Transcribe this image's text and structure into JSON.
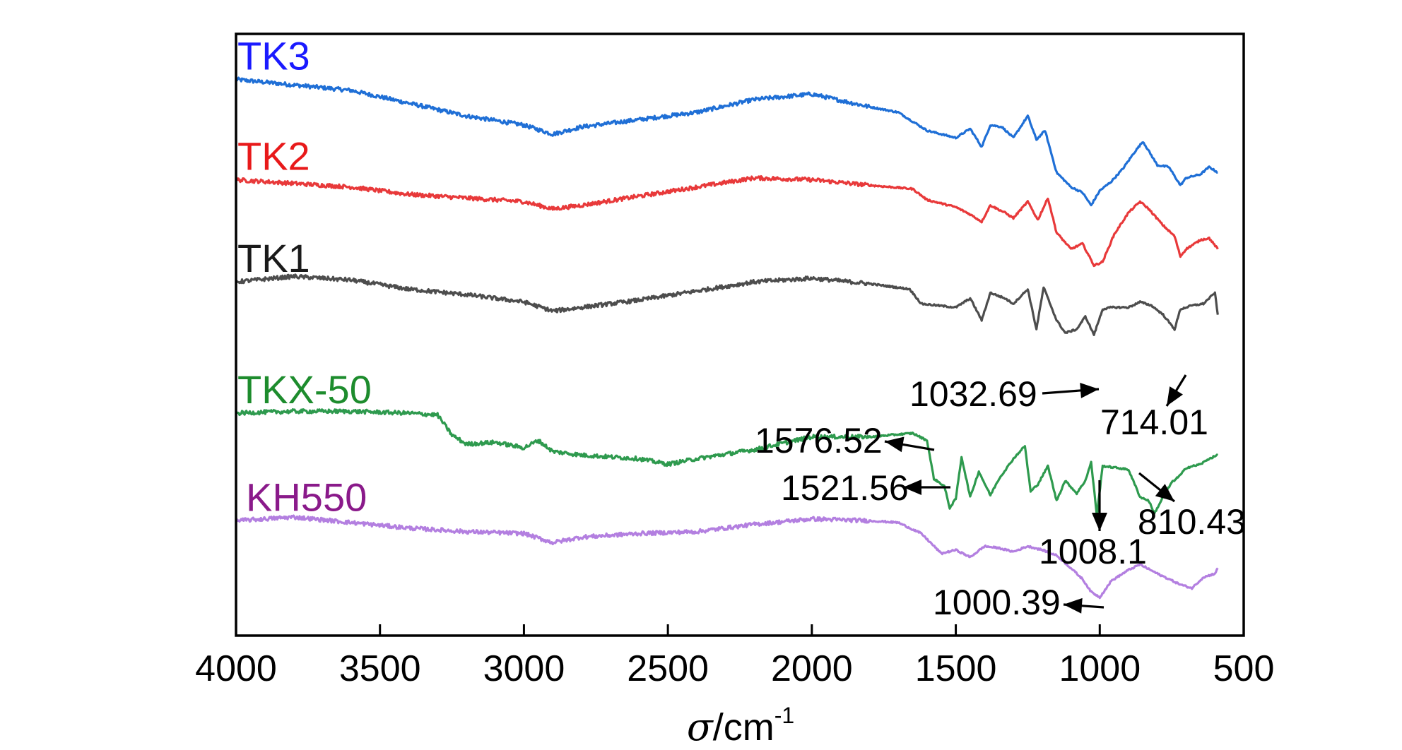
{
  "chart_data": {
    "type": "line",
    "xlabel_symbol": "σ",
    "xlabel_unit": "/cm",
    "xlabel_exp": "-1",
    "ylabel": "",
    "xlim": [
      4000,
      500
    ],
    "x_reversed": true,
    "grid": false,
    "x_ticks": [
      "4000",
      "3500",
      "3000",
      "2500",
      "2000",
      "1500",
      "1000",
      "500"
    ],
    "series": [
      {
        "name": "TK3",
        "color": "#1f6fd6",
        "label_color": "#1a1aff",
        "points": [
          [
            4000,
            14.5
          ],
          [
            3800,
            14.2
          ],
          [
            3600,
            13.9
          ],
          [
            3400,
            13.2
          ],
          [
            3200,
            12.5
          ],
          [
            3000,
            12.0
          ],
          [
            2900,
            11.5
          ],
          [
            2800,
            11.9
          ],
          [
            2600,
            12.3
          ],
          [
            2400,
            12.7
          ],
          [
            2200,
            13.4
          ],
          [
            2000,
            13.7
          ],
          [
            1800,
            13.0
          ],
          [
            1700,
            12.7
          ],
          [
            1600,
            11.7
          ],
          [
            1500,
            11.3
          ],
          [
            1450,
            11.8
          ],
          [
            1410,
            10.8
          ],
          [
            1380,
            12.0
          ],
          [
            1340,
            11.9
          ],
          [
            1300,
            11.3
          ],
          [
            1250,
            12.5
          ],
          [
            1220,
            11.2
          ],
          [
            1190,
            11.7
          ],
          [
            1150,
            9.4
          ],
          [
            1100,
            8.6
          ],
          [
            1060,
            8.3
          ],
          [
            1030,
            7.6
          ],
          [
            1000,
            8.4
          ],
          [
            960,
            8.9
          ],
          [
            920,
            9.6
          ],
          [
            880,
            10.5
          ],
          [
            850,
            11.1
          ],
          [
            800,
            9.8
          ],
          [
            760,
            9.7
          ],
          [
            720,
            8.7
          ],
          [
            700,
            9.1
          ],
          [
            650,
            9.3
          ],
          [
            620,
            9.7
          ],
          [
            590,
            9.4
          ]
        ]
      },
      {
        "name": "TK2",
        "color": "#e8393a",
        "label_color": "#e8191a",
        "points": [
          [
            4000,
            9.0
          ],
          [
            3800,
            8.8
          ],
          [
            3600,
            8.6
          ],
          [
            3400,
            8.2
          ],
          [
            3200,
            8.0
          ],
          [
            3000,
            7.8
          ],
          [
            2900,
            7.4
          ],
          [
            2800,
            7.6
          ],
          [
            2600,
            8.1
          ],
          [
            2400,
            8.6
          ],
          [
            2200,
            9.1
          ],
          [
            2000,
            9.0
          ],
          [
            1800,
            8.7
          ],
          [
            1650,
            8.5
          ],
          [
            1600,
            7.9
          ],
          [
            1500,
            7.5
          ],
          [
            1450,
            7.1
          ],
          [
            1410,
            6.7
          ],
          [
            1380,
            7.6
          ],
          [
            1330,
            7.2
          ],
          [
            1300,
            6.9
          ],
          [
            1250,
            7.8
          ],
          [
            1215,
            6.8
          ],
          [
            1180,
            8.0
          ],
          [
            1150,
            6.1
          ],
          [
            1100,
            5.2
          ],
          [
            1060,
            5.5
          ],
          [
            1020,
            4.3
          ],
          [
            990,
            4.5
          ],
          [
            950,
            6.0
          ],
          [
            900,
            7.2
          ],
          [
            860,
            7.8
          ],
          [
            830,
            7.4
          ],
          [
            780,
            6.5
          ],
          [
            740,
            5.9
          ],
          [
            720,
            4.8
          ],
          [
            700,
            5.2
          ],
          [
            650,
            5.7
          ],
          [
            620,
            5.8
          ],
          [
            590,
            5.2
          ]
        ]
      },
      {
        "name": "TK1",
        "color": "#4d4d4d",
        "label_color": "#1a1a1a",
        "points": [
          [
            4000,
            3.4
          ],
          [
            3800,
            3.7
          ],
          [
            3600,
            3.5
          ],
          [
            3400,
            3.0
          ],
          [
            3200,
            2.7
          ],
          [
            3000,
            2.3
          ],
          [
            2900,
            1.8
          ],
          [
            2800,
            2.0
          ],
          [
            2600,
            2.4
          ],
          [
            2400,
            2.9
          ],
          [
            2200,
            3.4
          ],
          [
            2000,
            3.6
          ],
          [
            1800,
            3.3
          ],
          [
            1660,
            3.0
          ],
          [
            1620,
            2.2
          ],
          [
            1500,
            2.0
          ],
          [
            1450,
            2.5
          ],
          [
            1410,
            1.3
          ],
          [
            1380,
            2.8
          ],
          [
            1330,
            2.5
          ],
          [
            1300,
            2.2
          ],
          [
            1250,
            3.0
          ],
          [
            1220,
            0.8
          ],
          [
            1195,
            3.1
          ],
          [
            1150,
            1.3
          ],
          [
            1120,
            0.6
          ],
          [
            1080,
            0.8
          ],
          [
            1050,
            1.5
          ],
          [
            1020,
            0.5
          ],
          [
            990,
            1.9
          ],
          [
            960,
            2.0
          ],
          [
            900,
            2.0
          ],
          [
            860,
            2.3
          ],
          [
            820,
            2.1
          ],
          [
            780,
            1.6
          ],
          [
            740,
            0.8
          ],
          [
            720,
            1.9
          ],
          [
            680,
            2.1
          ],
          [
            640,
            2.2
          ],
          [
            600,
            2.8
          ],
          [
            590,
            1.6
          ]
        ]
      },
      {
        "name": "TKX-50",
        "color": "#2e9a4e",
        "label_color": "#1d8c2d",
        "points": [
          [
            4000,
            -3.8
          ],
          [
            3800,
            -3.7
          ],
          [
            3600,
            -3.7
          ],
          [
            3400,
            -3.8
          ],
          [
            3300,
            -3.9
          ],
          [
            3250,
            -5.0
          ],
          [
            3200,
            -5.5
          ],
          [
            3100,
            -5.4
          ],
          [
            3000,
            -5.7
          ],
          [
            2950,
            -5.3
          ],
          [
            2900,
            -5.9
          ],
          [
            2800,
            -6.1
          ],
          [
            2600,
            -6.3
          ],
          [
            2500,
            -6.6
          ],
          [
            2400,
            -6.3
          ],
          [
            2200,
            -5.8
          ],
          [
            2000,
            -5.1
          ],
          [
            1800,
            -5.1
          ],
          [
            1650,
            -4.9
          ],
          [
            1600,
            -5.3
          ],
          [
            1576,
            -7.4
          ],
          [
            1540,
            -7.8
          ],
          [
            1521,
            -9.0
          ],
          [
            1500,
            -8.5
          ],
          [
            1480,
            -6.2
          ],
          [
            1450,
            -8.4
          ],
          [
            1420,
            -7.0
          ],
          [
            1380,
            -8.3
          ],
          [
            1350,
            -7.4
          ],
          [
            1300,
            -6.3
          ],
          [
            1260,
            -5.6
          ],
          [
            1240,
            -8.1
          ],
          [
            1215,
            -7.7
          ],
          [
            1180,
            -6.7
          ],
          [
            1150,
            -8.6
          ],
          [
            1120,
            -7.5
          ],
          [
            1080,
            -8.2
          ],
          [
            1050,
            -7.5
          ],
          [
            1030,
            -6.5
          ],
          [
            1010,
            -9.4
          ],
          [
            990,
            -6.7
          ],
          [
            940,
            -6.8
          ],
          [
            900,
            -6.9
          ],
          [
            860,
            -8.4
          ],
          [
            830,
            -8.6
          ],
          [
            810,
            -9.3
          ],
          [
            780,
            -8.4
          ],
          [
            750,
            -7.6
          ],
          [
            720,
            -7.2
          ],
          [
            700,
            -6.8
          ],
          [
            650,
            -6.6
          ],
          [
            620,
            -6.3
          ],
          [
            590,
            -6.1
          ]
        ]
      },
      {
        "name": "KH550",
        "color": "#b37fe0",
        "label_color": "#8a1a8a",
        "points": [
          [
            4000,
            -9.7
          ],
          [
            3800,
            -9.5
          ],
          [
            3600,
            -9.8
          ],
          [
            3400,
            -10.1
          ],
          [
            3200,
            -10.3
          ],
          [
            3000,
            -10.4
          ],
          [
            2900,
            -10.9
          ],
          [
            2800,
            -10.6
          ],
          [
            2600,
            -10.4
          ],
          [
            2400,
            -10.3
          ],
          [
            2200,
            -9.9
          ],
          [
            2000,
            -9.6
          ],
          [
            1800,
            -9.7
          ],
          [
            1700,
            -9.8
          ],
          [
            1620,
            -10.4
          ],
          [
            1550,
            -11.5
          ],
          [
            1500,
            -11.3
          ],
          [
            1450,
            -11.7
          ],
          [
            1400,
            -11.1
          ],
          [
            1350,
            -11.2
          ],
          [
            1300,
            -11.4
          ],
          [
            1250,
            -11.1
          ],
          [
            1200,
            -11.3
          ],
          [
            1150,
            -11.6
          ],
          [
            1100,
            -12.3
          ],
          [
            1060,
            -12.9
          ],
          [
            1030,
            -13.6
          ],
          [
            1000,
            -13.9
          ],
          [
            960,
            -13.0
          ],
          [
            900,
            -12.4
          ],
          [
            860,
            -12.1
          ],
          [
            800,
            -12.6
          ],
          [
            760,
            -12.9
          ],
          [
            720,
            -13.2
          ],
          [
            680,
            -13.4
          ],
          [
            640,
            -12.8
          ],
          [
            600,
            -12.6
          ],
          [
            590,
            -12.3
          ]
        ]
      }
    ],
    "annotations": [
      {
        "text": "1032.69",
        "x": 1032.69
      },
      {
        "text": "714.01",
        "x": 714.01
      },
      {
        "text": "1576.52",
        "x": 1576.52
      },
      {
        "text": "1521.56",
        "x": 1521.56
      },
      {
        "text": "1008.1",
        "x": 1008.1
      },
      {
        "text": "810.43",
        "x": 810.43
      },
      {
        "text": "1000.39",
        "x": 1000.39
      }
    ]
  }
}
